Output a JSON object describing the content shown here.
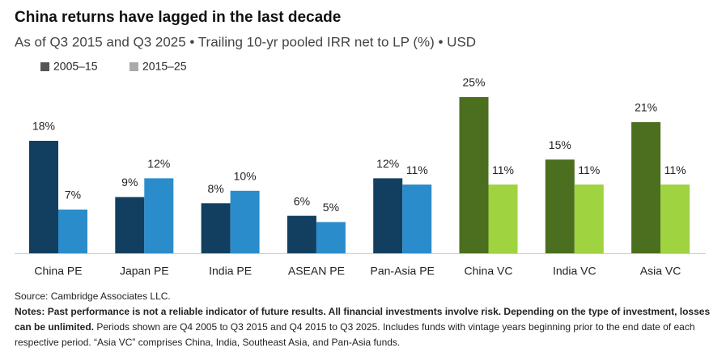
{
  "chart_data": {
    "type": "bar",
    "title": "China returns have lagged in the last decade",
    "subtitle": "As of Q3 2015 and Q3 2025 • Trailing 10-yr pooled IRR net to LP (%) • USD",
    "categories": [
      "China PE",
      "Japan PE",
      "India PE",
      "ASEAN PE",
      "Pan-Asia PE",
      "China VC",
      "India VC",
      "Asia VC"
    ],
    "series": [
      {
        "name": "2005–15",
        "color": "#555555",
        "colors": [
          "#123f5f",
          "#123f5f",
          "#123f5f",
          "#123f5f",
          "#123f5f",
          "#4b6e1f",
          "#4b6e1f",
          "#4b6e1f"
        ],
        "values": [
          18,
          9,
          8,
          6,
          12,
          25,
          15,
          21
        ],
        "value_labels": [
          "18%",
          "9%",
          "8%",
          "6%",
          "12%",
          "25%",
          "15%",
          "21%"
        ]
      },
      {
        "name": "2015–25",
        "color": "#aaaaaa",
        "colors": [
          "#2b8ccb",
          "#2b8ccb",
          "#2b8ccb",
          "#2b8ccb",
          "#2b8ccb",
          "#9fd33f",
          "#9fd33f",
          "#9fd33f"
        ],
        "values": [
          7,
          12,
          10,
          5,
          11,
          11,
          11,
          11
        ],
        "value_labels": [
          "7%",
          "12%",
          "10%",
          "5%",
          "11%",
          "11%",
          "11%",
          "11%"
        ]
      }
    ],
    "source": "Source: Cambridge Associates LLC.",
    "notes": {
      "label": "Notes:",
      "bold": "Past performance is not a reliable indicator of future results. All financial investments involve risk. Depending on the type of investment, losses can be unlimited.",
      "text": "Periods shown are Q4 2005 to Q3 2015 and Q4 2015 to Q3 2025. Includes funds with vintage years beginning prior to the end date of each respective period. “Asia VC” comprises China, India, Southeast Asia, and Pan-Asia funds."
    }
  }
}
